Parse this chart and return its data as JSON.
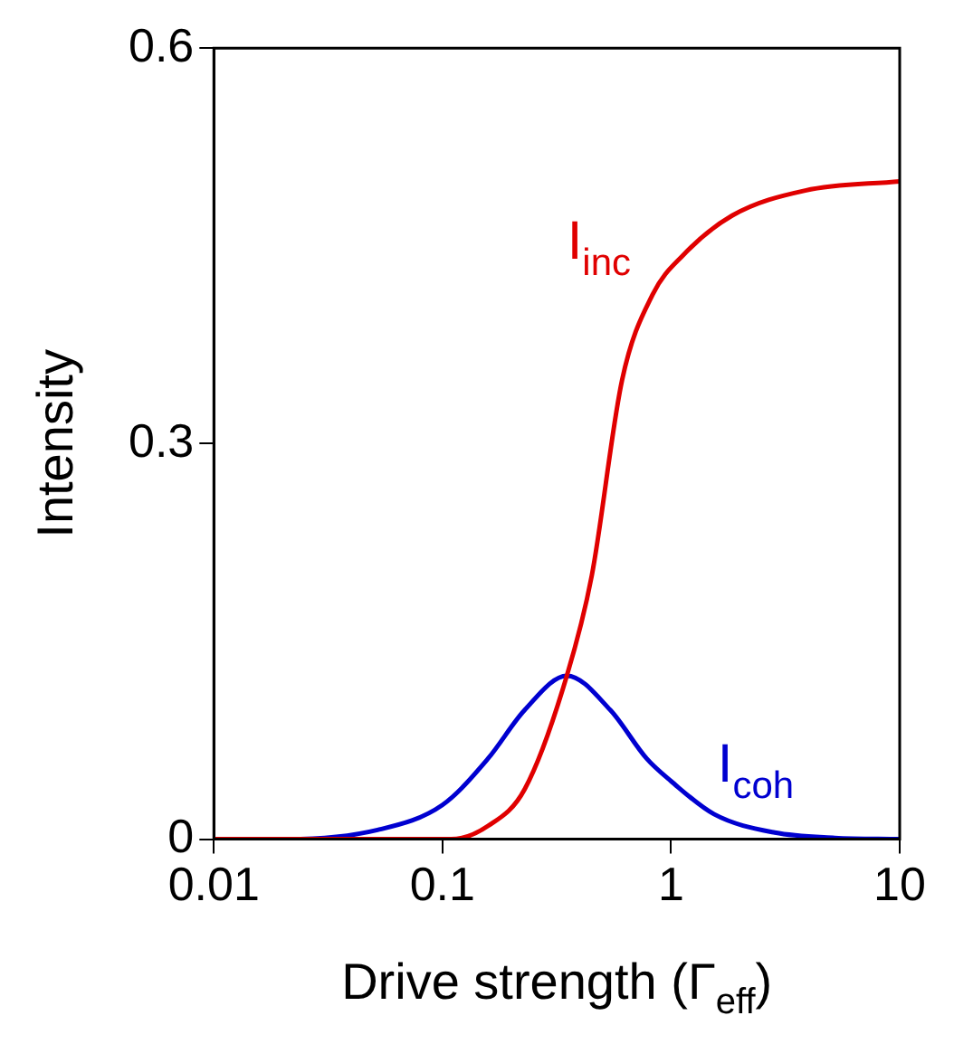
{
  "chart_data": {
    "type": "line",
    "xlabel": "Drive strength (Γ$_{eff}$)",
    "ylabel": "Intensity",
    "series": [
      {
        "name": "I$_{inc}$",
        "color": "#e00000",
        "x": [
          0.01,
          0.05,
          0.109,
          0.158,
          0.229,
          0.35,
          0.45,
          0.61,
          0.83,
          1.13,
          1.85,
          3.86,
          10
        ],
        "values": [
          0,
          0,
          0,
          0.01,
          0.038,
          0.124,
          0.2,
          0.348,
          0.413,
          0.443,
          0.473,
          0.492,
          0.499
        ]
      },
      {
        "name": "I$_{coh}$",
        "color": "#0000d0",
        "x": [
          0.01,
          0.021,
          0.052,
          0.1,
          0.158,
          0.229,
          0.35,
          0.542,
          0.783,
          1,
          1.54,
          2.84,
          5.2,
          10
        ],
        "values": [
          0,
          0,
          0.007,
          0.026,
          0.061,
          0.098,
          0.124,
          0.098,
          0.061,
          0.044,
          0.019,
          0.005,
          0.001,
          0
        ]
      }
    ],
    "log": "x",
    "xlim": [
      0.01,
      10
    ],
    "xticks": [
      0.01,
      0.1,
      1,
      10
    ],
    "ylim": [
      0,
      0.6
    ],
    "yticks": [
      0,
      0.3,
      0.6
    ],
    "grid": false,
    "legend": false,
    "marker": "none",
    "line_style": "solid"
  }
}
